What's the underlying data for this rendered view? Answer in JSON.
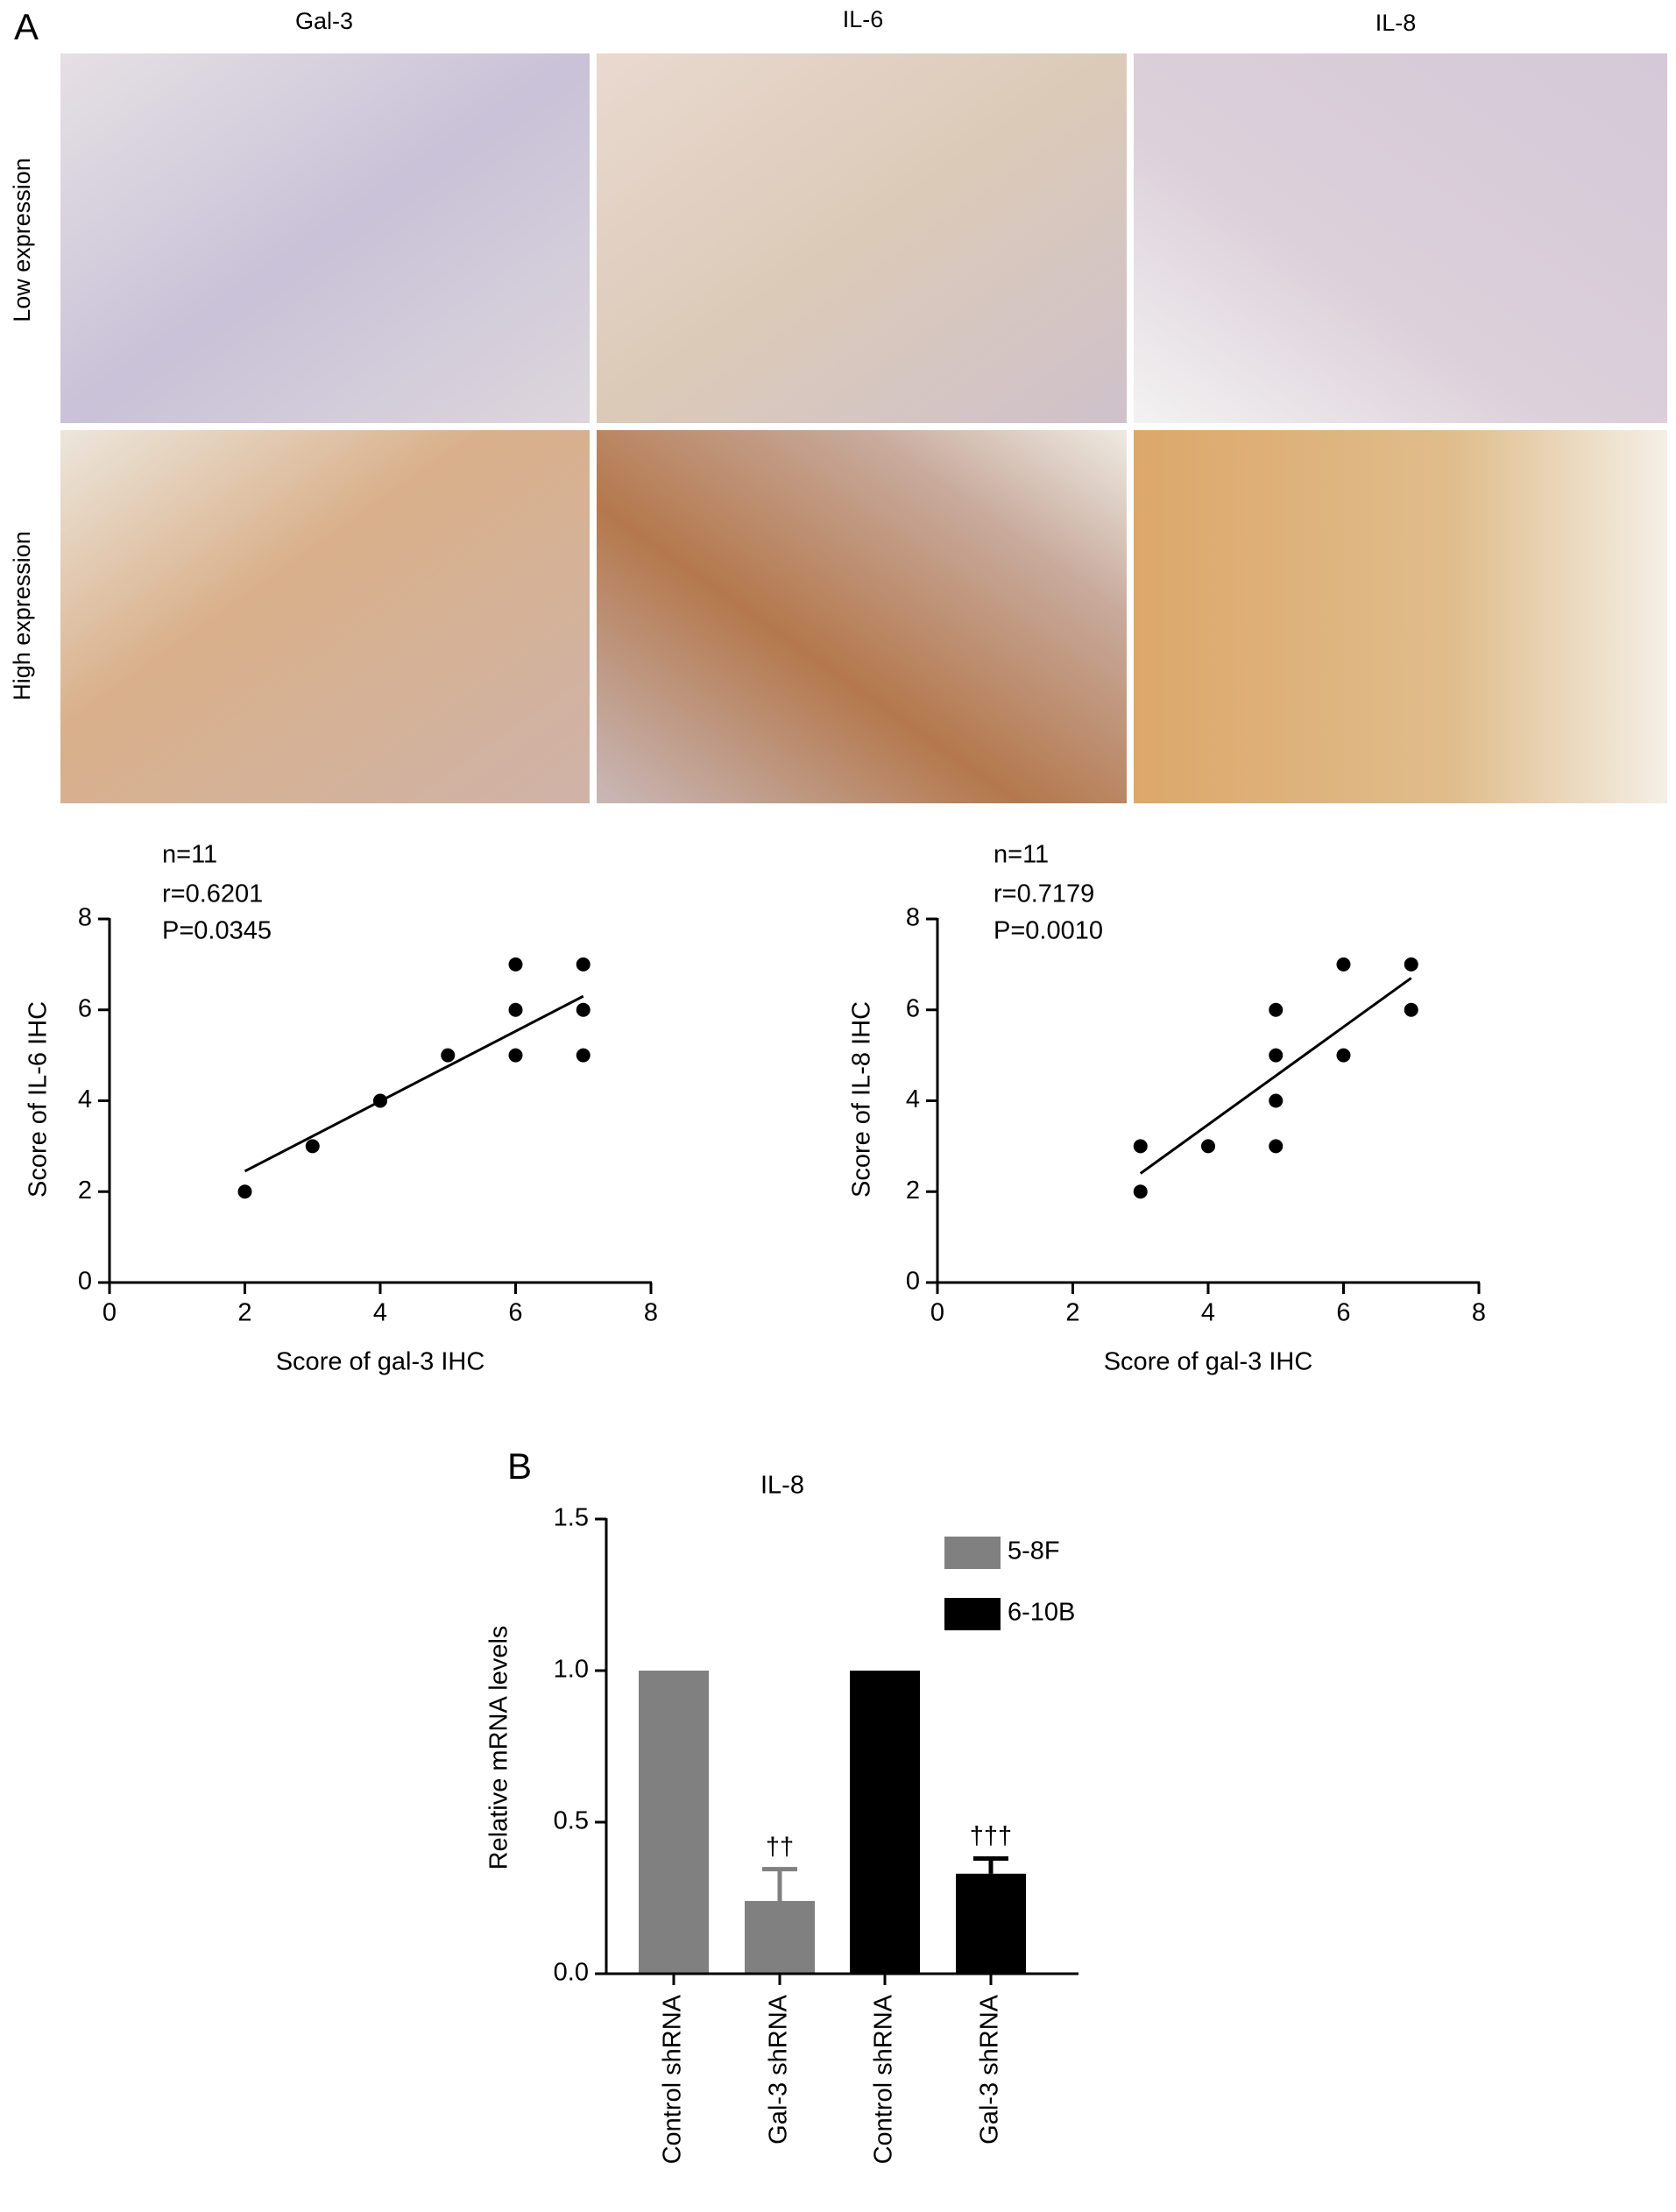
{
  "figure": {
    "panel_labels": [
      "A",
      "B"
    ],
    "columns": [
      "Gal-3",
      "IL-6",
      "IL-8"
    ],
    "rows": [
      "Low expression",
      "High expression"
    ]
  },
  "chart_data": [
    {
      "type": "scatter",
      "annotations": [
        "n=11",
        "r=0.6201",
        "P=0.0345"
      ],
      "xlabel": "Score of gal-3 IHC",
      "ylabel": "Score of IL-6 IHC",
      "x": [
        2,
        3,
        4,
        4,
        5,
        6,
        6,
        6,
        7,
        7,
        7
      ],
      "values": [
        2,
        3,
        4,
        4,
        5,
        7,
        6,
        5,
        7,
        6,
        5
      ],
      "color": "#000000",
      "fit": {
        "x": [
          2,
          7
        ],
        "values": [
          2.45,
          6.3
        ]
      },
      "xlim": [
        0,
        8
      ],
      "xticks": [
        0,
        2,
        4,
        6,
        8
      ],
      "ylim": [
        0,
        8
      ],
      "yticks": [
        0,
        2,
        4,
        6,
        8
      ]
    },
    {
      "type": "scatter",
      "annotations": [
        "n=11",
        "r=0.7179",
        "P=0.0010"
      ],
      "xlabel": "Score of gal-3 IHC",
      "ylabel": "Score of IL-8 IHC",
      "x": [
        3,
        3,
        4,
        5,
        5,
        5,
        5,
        6,
        6,
        7,
        7
      ],
      "values": [
        3,
        2,
        3,
        6,
        5,
        4,
        3,
        7,
        5,
        7,
        6
      ],
      "color": "#000000",
      "fit": {
        "x": [
          3,
          7
        ],
        "values": [
          2.4,
          6.7
        ]
      },
      "xlim": [
        0,
        8
      ],
      "xticks": [
        0,
        2,
        4,
        6,
        8
      ],
      "ylim": [
        0,
        8
      ],
      "yticks": [
        0,
        2,
        4,
        6,
        8
      ]
    },
    {
      "type": "bar",
      "title": "IL-8",
      "ylabel": "Relative mRNA levels",
      "categories": [
        "Control shRNA",
        "Gal-3 shRNA",
        "Control shRNA",
        "Gal-3 shRNA"
      ],
      "series": [
        {
          "name": "5-8F",
          "color": "#808080",
          "values": [
            1,
            0.24,
            null,
            null
          ],
          "errors": [
            null,
            0.105,
            null,
            null
          ],
          "significance": [
            null,
            "††",
            null,
            null
          ]
        },
        {
          "name": "6-10B",
          "color": "#000000",
          "values": [
            null,
            null,
            1,
            0.33
          ],
          "errors": [
            null,
            null,
            null,
            0.05
          ],
          "significance": [
            null,
            null,
            null,
            "†††"
          ]
        }
      ],
      "ylim": [
        0,
        1.5
      ],
      "yticks": [
        {
          "value": 0,
          "label": "0.0"
        },
        0.5,
        {
          "value": 1,
          "label": "1.0"
        },
        1.5
      ]
    }
  ]
}
